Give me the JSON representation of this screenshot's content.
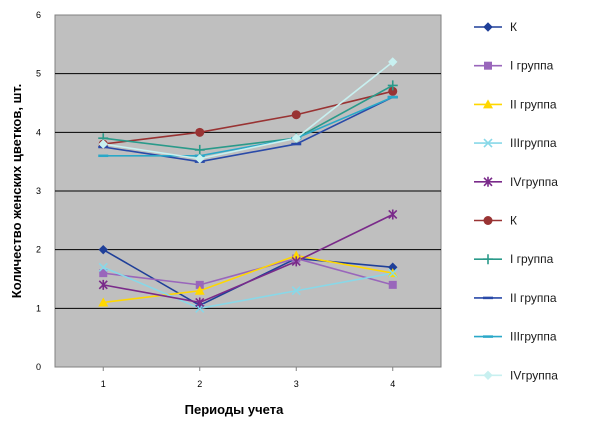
{
  "chart_data": {
    "type": "line",
    "title": "",
    "xlabel": "Периоды учета",
    "ylabel": "Количество женских цветков, шт.",
    "x": [
      1,
      2,
      3,
      4
    ],
    "ylim": [
      0,
      6
    ],
    "yticks": [
      0,
      1,
      2,
      3,
      4,
      5,
      6
    ],
    "grid": true,
    "plot_background": "#bfbfbf",
    "legend_position": "right",
    "series": [
      {
        "name": "К",
        "color": "#1f3f99",
        "marker": "diamond",
        "values": [
          2.0,
          1.05,
          1.85,
          1.7
        ]
      },
      {
        "name": "I группа",
        "color": "#9966bb",
        "marker": "square",
        "values": [
          1.6,
          1.4,
          1.85,
          1.4
        ]
      },
      {
        "name": "II группа",
        "color": "#ffd700",
        "marker": "triangle",
        "values": [
          1.1,
          1.3,
          1.9,
          1.6
        ]
      },
      {
        "name": "IIIгруппа",
        "color": "#88d8e8",
        "marker": "x",
        "values": [
          1.7,
          1.0,
          1.3,
          1.6
        ]
      },
      {
        "name": "IVгруппа",
        "color": "#7a2a8a",
        "marker": "star",
        "values": [
          1.4,
          1.1,
          1.8,
          2.6
        ]
      },
      {
        "name": "К",
        "color": "#993333",
        "marker": "circle",
        "values": [
          3.8,
          4.0,
          4.3,
          4.7
        ]
      },
      {
        "name": "I группа",
        "color": "#2a9a8a",
        "marker": "plus",
        "values": [
          3.9,
          3.7,
          3.9,
          4.8
        ]
      },
      {
        "name": "II группа",
        "color": "#2a4aa8",
        "marker": "dash",
        "values": [
          3.75,
          3.5,
          3.8,
          4.6
        ]
      },
      {
        "name": "IIIгруппа",
        "color": "#2aa8c8",
        "marker": "dash",
        "values": [
          3.6,
          3.6,
          3.9,
          4.6
        ]
      },
      {
        "name": "IVгруппа",
        "color": "#c8f0f0",
        "marker": "diamond",
        "values": [
          3.8,
          3.55,
          3.9,
          5.2
        ]
      }
    ]
  }
}
